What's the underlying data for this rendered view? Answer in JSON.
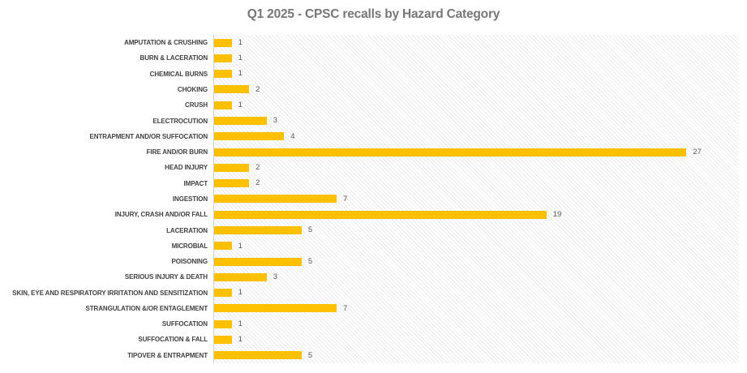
{
  "title": "Q1 2025 - CPSC recalls by Hazard Category",
  "colors": {
    "bar": "#FFC000",
    "title_text": "#777777",
    "category_text": "#404040",
    "value_text": "#595959",
    "axis_line": "#d0d0d0",
    "plot_hatch": "#ebebeb",
    "background": "#ffffff"
  },
  "chart_data": {
    "type": "bar",
    "orientation": "horizontal",
    "title": "Q1 2025 - CPSC recalls by Hazard Category",
    "categories": [
      "AMPUTATION & CRUSHING",
      "BURN & LACERATION",
      "CHEMICAL BURNS",
      "CHOKING",
      "CRUSH",
      "ELECTROCUTION",
      "ENTRAPMENT AND/OR SUFFOCATION",
      "FIRE AND/OR BURN",
      "HEAD INJURY",
      "IMPACT",
      "INGESTION",
      "INJURY, CRASH AND/OR FALL",
      "LACERATION",
      "MICROBIAL",
      "POISONING",
      "SERIOUS INJURY & DEATH",
      "SKIN, EYE AND RESPIRATORY IRRITATION AND SENSITIZATION",
      "STRANGULATION &/OR ENTAGLEMENT",
      "SUFFOCATION",
      "SUFFOCATION & FALL",
      "TIPOVER & ENTRAPMENT"
    ],
    "values": [
      1,
      1,
      1,
      2,
      1,
      3,
      4,
      27,
      2,
      2,
      7,
      19,
      5,
      1,
      5,
      3,
      1,
      7,
      1,
      1,
      5
    ],
    "xlabel": "",
    "ylabel": "",
    "xlim": [
      0,
      30
    ],
    "data_labels": true,
    "grid": false,
    "legend": "none",
    "plot_background": "diagonal-hatch"
  }
}
